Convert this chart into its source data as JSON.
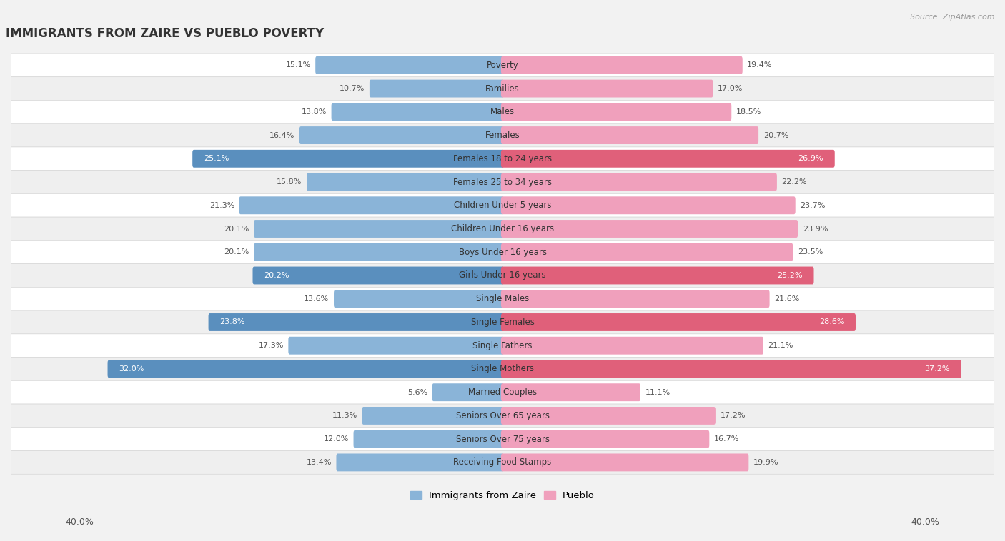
{
  "title": "IMMIGRANTS FROM ZAIRE VS PUEBLO POVERTY",
  "source": "Source: ZipAtlas.com",
  "categories": [
    "Poverty",
    "Families",
    "Males",
    "Females",
    "Females 18 to 24 years",
    "Females 25 to 34 years",
    "Children Under 5 years",
    "Children Under 16 years",
    "Boys Under 16 years",
    "Girls Under 16 years",
    "Single Males",
    "Single Females",
    "Single Fathers",
    "Single Mothers",
    "Married Couples",
    "Seniors Over 65 years",
    "Seniors Over 75 years",
    "Receiving Food Stamps"
  ],
  "zaire_values": [
    15.1,
    10.7,
    13.8,
    16.4,
    25.1,
    15.8,
    21.3,
    20.1,
    20.1,
    20.2,
    13.6,
    23.8,
    17.3,
    32.0,
    5.6,
    11.3,
    12.0,
    13.4
  ],
  "pueblo_values": [
    19.4,
    17.0,
    18.5,
    20.7,
    26.9,
    22.2,
    23.7,
    23.9,
    23.5,
    25.2,
    21.6,
    28.6,
    21.1,
    37.2,
    11.1,
    17.2,
    16.7,
    19.9
  ],
  "zaire_color": "#8ab4d8",
  "pueblo_color": "#f0a0bc",
  "zaire_highlight_color": "#5a8fbe",
  "pueblo_highlight_color": "#e0607a",
  "highlight_rows": [
    4,
    9,
    11,
    13
  ],
  "axis_limit": 40.0,
  "bar_height": 0.52,
  "bg_color": "#f2f2f2",
  "row_bg_white": "#ffffff",
  "row_bg_gray": "#efefef",
  "row_border_color": "#d8d8d8",
  "legend_label_zaire": "Immigrants from Zaire",
  "legend_label_pueblo": "Pueblo",
  "label_color_normal": "#555555",
  "label_color_highlight": "#ffffff",
  "cat_label_fontsize": 8.5,
  "val_label_fontsize": 8.0
}
